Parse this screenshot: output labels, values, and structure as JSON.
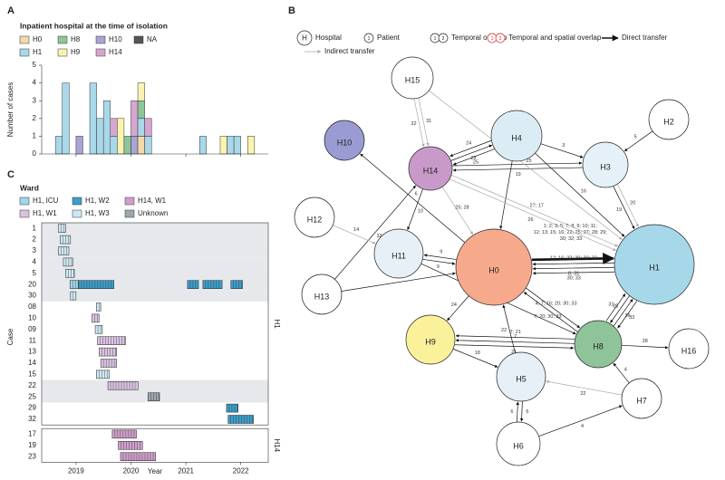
{
  "chart_data": [
    {
      "type": "histogram",
      "panel": "A",
      "title": "Inpatient hospital at the time of isolation",
      "ylabel": "Number of cases",
      "bins": [
        2018.375,
        2018.5,
        2018.625,
        2018.75,
        2018.875,
        2019,
        2019.125,
        2019.25,
        2019.375,
        2019.5,
        2019.625,
        2019.75,
        2019.875,
        2020,
        2020.125,
        2020.25,
        2020.375,
        2020.5,
        2020.625,
        2020.75,
        2020.875,
        2021,
        2021.125,
        2021.25,
        2021.375,
        2021.5,
        2021.625,
        2021.75,
        2021.875,
        2022,
        2022.125,
        2022.25,
        2022.375,
        2022.5
      ],
      "xlim": [
        2018.375,
        2022.5
      ],
      "ylim": [
        0,
        5
      ],
      "yticks": [
        0,
        1,
        2,
        3,
        4,
        5
      ],
      "series": [
        {
          "name": "H0",
          "color": "#f6d9a8",
          "values": [
            0,
            0,
            0,
            0,
            0,
            0,
            0,
            0,
            0,
            0,
            0,
            0,
            0,
            0,
            1,
            0,
            0,
            0,
            0,
            0,
            0,
            0,
            0,
            0,
            0,
            0,
            0,
            0,
            0,
            0,
            0,
            0,
            0
          ]
        },
        {
          "name": "H1",
          "color": "#a9d8ea",
          "values": [
            0,
            0,
            1,
            4,
            0,
            0,
            0,
            4,
            2,
            3,
            1,
            0,
            0,
            0,
            1,
            1,
            0,
            0,
            0,
            0,
            0,
            0,
            0,
            1,
            0,
            0,
            0,
            1,
            1,
            0,
            0,
            0,
            0
          ]
        },
        {
          "name": "H8",
          "color": "#8cc69a",
          "values": [
            0,
            0,
            0,
            0,
            0,
            0,
            0,
            0,
            0,
            0,
            0,
            0,
            1,
            0,
            1,
            0,
            0,
            0,
            0,
            0,
            0,
            0,
            0,
            0,
            0,
            0,
            0,
            0,
            0,
            0,
            0,
            0,
            0
          ]
        },
        {
          "name": "H9",
          "color": "#fbf3b0",
          "values": [
            0,
            0,
            0,
            0,
            0,
            0,
            0,
            0,
            0,
            0,
            0,
            2,
            0,
            0,
            1,
            0,
            0,
            0,
            0,
            0,
            0,
            0,
            0,
            0,
            0,
            0,
            1,
            0,
            0,
            0,
            1,
            0,
            0
          ]
        },
        {
          "name": "H10",
          "color": "#a9a3d6",
          "values": [
            0,
            0,
            0,
            0,
            0,
            1,
            0,
            0,
            0,
            0,
            0,
            0,
            0,
            1,
            0,
            0,
            0,
            0,
            0,
            0,
            0,
            0,
            0,
            0,
            0,
            0,
            0,
            0,
            0,
            0,
            0,
            0,
            0
          ]
        },
        {
          "name": "H14",
          "color": "#d6a6d0",
          "values": [
            0,
            0,
            0,
            0,
            0,
            0,
            0,
            0,
            0,
            0,
            1,
            0,
            0,
            2,
            0,
            1,
            0,
            0,
            0,
            0,
            0,
            0,
            0,
            0,
            0,
            0,
            0,
            0,
            0,
            0,
            0,
            0,
            0
          ]
        },
        {
          "name": "NA",
          "color": "#555555",
          "values": [
            0,
            0,
            0,
            0,
            0,
            0,
            0,
            0,
            0,
            0,
            0,
            0,
            0,
            0,
            0,
            0,
            0,
            0,
            0,
            0,
            0,
            0,
            0,
            0,
            0,
            0,
            0,
            0,
            0,
            0,
            0,
            0,
            0
          ]
        }
      ]
    },
    {
      "type": "timeline",
      "panel": "C",
      "title": "Ward",
      "xlabel": "Year",
      "ylabel": "Case",
      "xlim": [
        2018.375,
        2022.5
      ],
      "xticks": [
        2019,
        2020,
        2021,
        2022
      ],
      "series": [
        {
          "name": "H1, ICU",
          "color": "#9fd6ea"
        },
        {
          "name": "H1, W1",
          "color": "#d9c3e2"
        },
        {
          "name": "H1, W2",
          "color": "#3d9ec9"
        },
        {
          "name": "H1, W3",
          "color": "#cde8f3"
        },
        {
          "name": "H14, W1",
          "color": "#cf9fcb"
        },
        {
          "name": "Unknown",
          "color": "#9aa8b0"
        }
      ],
      "facets": [
        {
          "label": "H1",
          "rows": [
            {
              "case": "1",
              "shaded": true,
              "segments": [
                {
                  "ward": "H1, W3",
                  "start": 2018.68,
                  "end": 2018.81
                }
              ]
            },
            {
              "case": "2",
              "shaded": true,
              "segments": [
                {
                  "ward": "H1, W3",
                  "start": 2018.71,
                  "end": 2018.9
                }
              ]
            },
            {
              "case": "3",
              "shaded": true,
              "segments": [
                {
                  "ward": "H1, W3",
                  "start": 2018.68,
                  "end": 2018.87
                }
              ]
            },
            {
              "case": "4",
              "shaded": true,
              "segments": [
                {
                  "ward": "H1, W3",
                  "start": 2018.77,
                  "end": 2018.94
                }
              ]
            },
            {
              "case": "5",
              "shaded": true,
              "segments": [
                {
                  "ward": "H1, W3",
                  "start": 2018.81,
                  "end": 2018.97
                }
              ]
            },
            {
              "case": "20",
              "shaded": true,
              "segments": [
                {
                  "ward": "H1, ICU",
                  "start": 2018.89,
                  "end": 2019.05
                },
                {
                  "ward": "H1, W2",
                  "start": 2019.05,
                  "end": 2019.69
                },
                {
                  "ward": "H1, W2",
                  "start": 2021.03,
                  "end": 2021.23
                },
                {
                  "ward": "H1, W2",
                  "start": 2021.31,
                  "end": 2021.66
                },
                {
                  "ward": "H1, W2",
                  "start": 2021.82,
                  "end": 2022.03
                }
              ]
            },
            {
              "case": "30",
              "shaded": true,
              "segments": [
                {
                  "ward": "H1, W3",
                  "start": 2018.9,
                  "end": 2019
                }
              ]
            },
            {
              "case": "08",
              "shaded": false,
              "segments": [
                {
                  "ward": "H1, W3",
                  "start": 2019.37,
                  "end": 2019.45
                }
              ]
            },
            {
              "case": "10",
              "shaded": false,
              "segments": [
                {
                  "ward": "H1, W1",
                  "start": 2019.29,
                  "end": 2019.42
                }
              ]
            },
            {
              "case": "09",
              "shaded": false,
              "segments": [
                {
                  "ward": "H1, W3",
                  "start": 2019.35,
                  "end": 2019.48
                }
              ]
            },
            {
              "case": "11",
              "shaded": false,
              "segments": [
                {
                  "ward": "H1, W1",
                  "start": 2019.39,
                  "end": 2019.9
                }
              ]
            },
            {
              "case": "13",
              "shaded": false,
              "segments": [
                {
                  "ward": "H1, W1",
                  "start": 2019.42,
                  "end": 2019.74
                }
              ]
            },
            {
              "case": "14",
              "shaded": false,
              "segments": [
                {
                  "ward": "H1, W1",
                  "start": 2019.45,
                  "end": 2019.74
                }
              ]
            },
            {
              "case": "15",
              "shaded": false,
              "segments": [
                {
                  "ward": "H1, W3",
                  "start": 2019.37,
                  "end": 2019.61
                }
              ]
            },
            {
              "case": "22",
              "shaded": true,
              "segments": [
                {
                  "ward": "H1, W1",
                  "start": 2019.58,
                  "end": 2020.13
                }
              ]
            },
            {
              "case": "25",
              "shaded": true,
              "segments": [
                {
                  "ward": "Unknown",
                  "start": 2020.31,
                  "end": 2020.52
                }
              ]
            },
            {
              "case": "29",
              "shaded": false,
              "segments": [
                {
                  "ward": "H1, W2",
                  "start": 2021.74,
                  "end": 2021.95
                }
              ]
            },
            {
              "case": "32",
              "shaded": false,
              "segments": [
                {
                  "ward": "H1, W2",
                  "start": 2021.77,
                  "end": 2022.23
                }
              ]
            }
          ]
        },
        {
          "label": "H14",
          "rows": [
            {
              "case": "17",
              "shaded": false,
              "segments": [
                {
                  "ward": "H14, W1",
                  "start": 2019.66,
                  "end": 2020.1
                }
              ]
            },
            {
              "case": "19",
              "shaded": false,
              "segments": [
                {
                  "ward": "H14, W1",
                  "start": 2019.77,
                  "end": 2020.21
                }
              ]
            },
            {
              "case": "23",
              "shaded": false,
              "segments": [
                {
                  "ward": "H14, W1",
                  "start": 2019.81,
                  "end": 2020.45
                }
              ]
            }
          ]
        }
      ]
    }
  ],
  "diagram": {
    "panel": "B",
    "legend": [
      {
        "icon": [
          "H"
        ],
        "label": "Hospital"
      },
      {
        "icon": [
          "1"
        ],
        "label": "Patient"
      },
      {
        "icon": [
          "1",
          "2"
        ],
        "label": "Temporal overlap"
      },
      {
        "icon": [
          "1",
          "2"
        ],
        "label": "Temporal and spatial overlap"
      },
      {
        "icon": [],
        "label": "Direct transfer"
      },
      {
        "icon": [],
        "label": "Indirect transfer"
      }
    ],
    "nodes": [
      {
        "id": "H0",
        "color": "#f7a98b"
      },
      {
        "id": "H1",
        "color": "#a7d8ea"
      },
      {
        "id": "H2",
        "color": "#ffffff"
      },
      {
        "id": "H3",
        "color": "#e5f1f8"
      },
      {
        "id": "H4",
        "color": "#dcecf5"
      },
      {
        "id": "H5",
        "color": "#e6f0f6"
      },
      {
        "id": "H6",
        "color": "#ffffff"
      },
      {
        "id": "H7",
        "color": "#ffffff"
      },
      {
        "id": "H8",
        "color": "#8fc49a"
      },
      {
        "id": "H9",
        "color": "#fbf19a"
      },
      {
        "id": "H10",
        "color": "#9b9bd4"
      },
      {
        "id": "H11",
        "color": "#e6f0f6"
      },
      {
        "id": "H12",
        "color": "#ffffff"
      },
      {
        "id": "H13",
        "color": "#ffffff"
      },
      {
        "id": "H14",
        "color": "#c99ac9"
      },
      {
        "id": "H15",
        "color": "#ffffff"
      },
      {
        "id": "H16",
        "color": "#ffffff"
      }
    ],
    "edges": [
      {
        "from": "H0",
        "to": "H10",
        "label": "6",
        "indirect": false
      },
      {
        "from": "H4",
        "to": "H14",
        "label": "24",
        "indirect": false
      },
      {
        "from": "H14",
        "to": "H4",
        "label": "23",
        "indirect": false
      },
      {
        "from": "H4",
        "to": "H14",
        "label": "25",
        "indirect": false
      },
      {
        "from": "H14",
        "to": "H3",
        "label": "19",
        "indirect": false
      },
      {
        "from": "H3",
        "to": "H14",
        "label": "19",
        "indirect": false
      },
      {
        "from": "H2",
        "to": "H3",
        "label": "5",
        "indirect": false
      },
      {
        "from": "H4",
        "to": "H3",
        "label": "3",
        "indirect": false
      },
      {
        "from": "H4",
        "to": "H0",
        "indirect": false
      },
      {
        "from": "H4",
        "to": "H1",
        "label": "16",
        "indirect": false
      },
      {
        "from": "H3",
        "to": "H1",
        "label": "19",
        "indirect": false
      },
      {
        "from": "H13",
        "to": "H14",
        "label": "32",
        "indirect": false
      },
      {
        "from": "H13",
        "to": "H0",
        "label": "33",
        "indirect": false
      },
      {
        "from": "H11",
        "to": "H0",
        "label": "9",
        "indirect": false
      },
      {
        "from": "H0",
        "to": "H11",
        "label": "9",
        "indirect": false
      },
      {
        "from": "H0",
        "to": "H1",
        "label": "1; 2; 3; 5; 7; 8; 9; 10; 11; 12; 13; 15; 16; 22; 25; 27; 28; 29; 30; 32; 33",
        "indirect": false
      },
      {
        "from": "H1",
        "to": "H0",
        "label": "12; 16; 22; 29; 30; 32",
        "indirect": false
      },
      {
        "from": "H1",
        "to": "H0",
        "label": "8; 31",
        "indirect": false
      },
      {
        "from": "H1",
        "to": "H0",
        "label": "30; 33",
        "indirect": false
      },
      {
        "from": "H0",
        "to": "H8",
        "label": "4; 7; 16; 20; 30; 33",
        "indirect": false
      },
      {
        "from": "H8",
        "to": "H0",
        "label": "7; 20; 30; 33",
        "indirect": false
      },
      {
        "from": "H0",
        "to": "H9",
        "label": "24",
        "indirect": false
      },
      {
        "from": "H9",
        "to": "H8",
        "label": "21",
        "indirect": false
      },
      {
        "from": "H8",
        "to": "H9",
        "label": "7",
        "indirect": false
      },
      {
        "from": "H8",
        "to": "H9",
        "label": "7; 21",
        "indirect": false
      },
      {
        "from": "H9",
        "to": "H5",
        "label": "18",
        "indirect": false
      },
      {
        "from": "H5",
        "to": "H6",
        "label": "6",
        "indirect": false
      },
      {
        "from": "H6",
        "to": "H5",
        "label": "6",
        "indirect": false
      },
      {
        "from": "H6",
        "to": "H7",
        "label": "4",
        "indirect": false
      },
      {
        "from": "H7",
        "to": "H8",
        "label": "4",
        "indirect": false
      },
      {
        "from": "H8",
        "to": "H16",
        "label": "28",
        "indirect": false
      },
      {
        "from": "H1",
        "to": "H8",
        "label": "33",
        "indirect": false
      },
      {
        "from": "H8",
        "to": "H1",
        "label": "36",
        "indirect": false
      },
      {
        "from": "H1",
        "to": "H8",
        "label": "28",
        "indirect": false
      },
      {
        "from": "H8",
        "to": "H1",
        "label": "31",
        "indirect": false
      },
      {
        "from": "H5",
        "to": "H0",
        "label": "22",
        "indirect": false
      },
      {
        "from": "H11",
        "to": "H8",
        "label": "14",
        "indirect": false
      },
      {
        "from": "H14",
        "to": "H11",
        "label": "10",
        "indirect": false
      },
      {
        "from": "H15",
        "to": "H14",
        "label": "32",
        "indirect": true
      },
      {
        "from": "H15",
        "to": "H14",
        "label": "31",
        "indirect": true
      },
      {
        "from": "H12",
        "to": "H11",
        "label": "14",
        "indirect": true
      },
      {
        "from": "H7",
        "to": "H5",
        "label": "22",
        "indirect": true
      },
      {
        "from": "H15",
        "to": "H1",
        "label": "25",
        "indirect": true
      },
      {
        "from": "H14",
        "to": "H1",
        "label": "26",
        "indirect": true
      },
      {
        "from": "H14",
        "to": "H1",
        "label": "27; 17",
        "indirect": true
      },
      {
        "from": "H14",
        "to": "H0",
        "label": "25; 28",
        "indirect": true
      },
      {
        "from": "H3",
        "to": "H1",
        "label": "20",
        "indirect": true
      }
    ]
  }
}
